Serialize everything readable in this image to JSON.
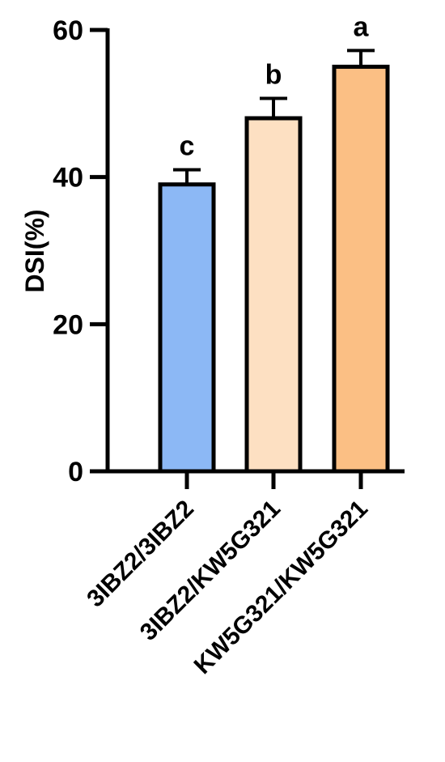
{
  "chart_data": {
    "type": "bar",
    "title": "",
    "xlabel": "",
    "ylabel": "DSI(%)",
    "ylim": [
      0,
      60
    ],
    "yticks": [
      0,
      20,
      40,
      60
    ],
    "grid": false,
    "categories": [
      "3IBZ2/3IBZ2",
      "3IBZ2/KW5G321",
      "KW5G321/KW5G321"
    ],
    "values": [
      39,
      48,
      55
    ],
    "errors": [
      2,
      2.7,
      2.2
    ],
    "significance_letters": [
      "c",
      "b",
      "a"
    ],
    "colors": [
      "#8cb8f5",
      "#fde0c2",
      "#fbbf84"
    ]
  }
}
